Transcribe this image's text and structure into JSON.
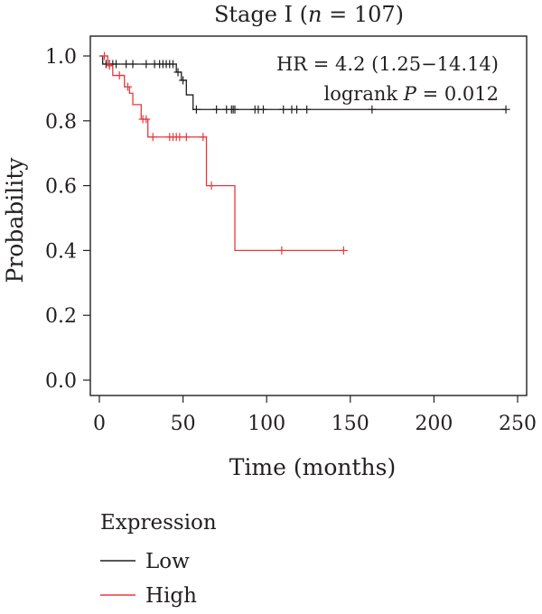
{
  "chart_data": {
    "type": "line",
    "subtype": "kaplan-meier",
    "title": {
      "prefix": "Stage I (",
      "italic": "n",
      "suffix": " = 107)"
    },
    "xlabel": "Time (months)",
    "ylabel": "Probability",
    "xlim": [
      0,
      250
    ],
    "ylim": [
      0,
      1.0
    ],
    "xticks": [
      0,
      50,
      100,
      150,
      200,
      250
    ],
    "yticks": [
      0.0,
      0.2,
      0.4,
      0.6,
      0.8,
      1.0
    ],
    "xtick_labels": [
      "0",
      "50",
      "100",
      "150",
      "200",
      "250"
    ],
    "ytick_labels": [
      "0.0",
      "0.2",
      "0.4",
      "0.6",
      "0.8",
      "1.0"
    ],
    "grid": false,
    "annotations": {
      "hr": "HR = 4.2 (1.25−14.14)",
      "logrank_prefix": "logrank ",
      "logrank_italic": "P",
      "logrank_suffix": " = 0.012"
    },
    "legend": {
      "title": "Expression",
      "placement": "bottom-left"
    },
    "series": [
      {
        "name": "Low",
        "color": "#231f20",
        "steps": [
          [
            0,
            1.0
          ],
          [
            2,
            0.975
          ],
          [
            46,
            0.95
          ],
          [
            49,
            0.925
          ],
          [
            52,
            0.88
          ],
          [
            56,
            0.835
          ],
          [
            243,
            0.835
          ]
        ],
        "censors": [
          [
            4,
            0.975
          ],
          [
            6,
            0.975
          ],
          [
            8,
            0.975
          ],
          [
            10,
            0.975
          ],
          [
            16,
            0.975
          ],
          [
            20,
            0.975
          ],
          [
            28,
            0.975
          ],
          [
            33,
            0.975
          ],
          [
            36,
            0.975
          ],
          [
            38,
            0.975
          ],
          [
            40,
            0.975
          ],
          [
            42,
            0.975
          ],
          [
            44,
            0.975
          ],
          [
            47,
            0.95
          ],
          [
            50,
            0.925
          ],
          [
            58,
            0.835
          ],
          [
            70,
            0.835
          ],
          [
            76,
            0.835
          ],
          [
            79,
            0.835
          ],
          [
            80,
            0.835
          ],
          [
            81,
            0.835
          ],
          [
            93,
            0.835
          ],
          [
            95,
            0.835
          ],
          [
            98,
            0.835
          ],
          [
            110,
            0.835
          ],
          [
            115,
            0.835
          ],
          [
            118,
            0.835
          ],
          [
            124,
            0.835
          ],
          [
            163,
            0.835
          ],
          [
            243,
            0.835
          ]
        ]
      },
      {
        "name": "High",
        "color": "#e8383d",
        "steps": [
          [
            0,
            1.0
          ],
          [
            5,
            0.97
          ],
          [
            8,
            0.94
          ],
          [
            15,
            0.905
          ],
          [
            18,
            0.885
          ],
          [
            20,
            0.85
          ],
          [
            25,
            0.805
          ],
          [
            29,
            0.75
          ],
          [
            62,
            0.75
          ],
          [
            64,
            0.6
          ],
          [
            80,
            0.6
          ],
          [
            81,
            0.4
          ],
          [
            146,
            0.4
          ]
        ],
        "censors": [
          [
            3,
            1.0
          ],
          [
            6,
            0.97
          ],
          [
            12,
            0.94
          ],
          [
            17,
            0.905
          ],
          [
            26,
            0.805
          ],
          [
            28,
            0.805
          ],
          [
            32,
            0.75
          ],
          [
            42,
            0.75
          ],
          [
            44,
            0.75
          ],
          [
            46,
            0.75
          ],
          [
            48,
            0.75
          ],
          [
            52,
            0.75
          ],
          [
            62,
            0.75
          ],
          [
            67,
            0.6
          ],
          [
            109,
            0.4
          ],
          [
            146,
            0.4
          ]
        ]
      }
    ]
  }
}
